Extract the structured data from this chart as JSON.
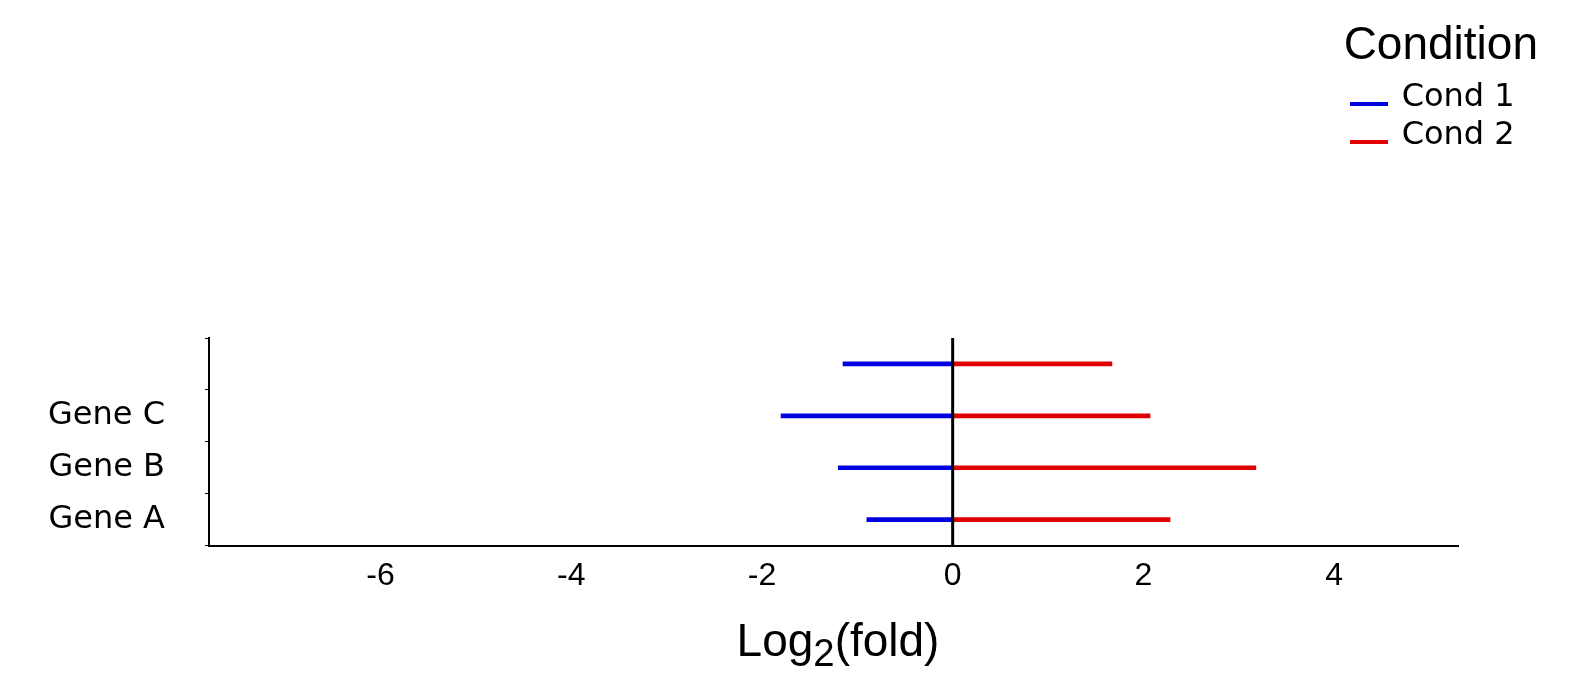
{
  "chart_data": {
    "type": "bar",
    "orientation": "horizontal",
    "stacked": true,
    "categories": [
      null,
      "Gene C",
      "Gene B",
      "Gene A"
    ],
    "series": [
      {
        "name": "Cond 1",
        "color": "#0000e0",
        "values": [
          -1.15,
          -1.8,
          -1.2,
          -0.9
        ]
      },
      {
        "name": "Cond 2",
        "color": "#e00000",
        "values": [
          1.67,
          2.07,
          3.18,
          2.28
        ]
      }
    ],
    "xlim": [
      -7.8,
      5.3
    ],
    "xticks": [
      -6,
      -4,
      -2,
      0,
      2,
      4
    ],
    "xlabel": "Log$_{2}$(fold)",
    "legend_title": "Condition",
    "legend": "top right",
    "grid": false,
    "ref_lines": [
      {
        "axis": "x",
        "value": 0,
        "color": "#000000"
      }
    ]
  }
}
